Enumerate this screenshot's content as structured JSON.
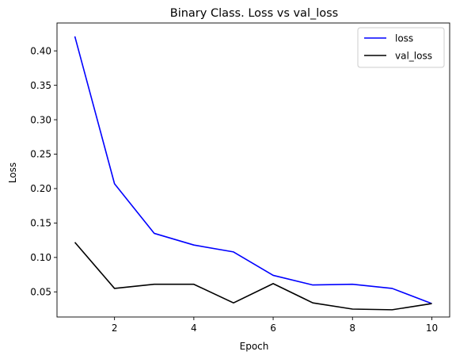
{
  "chart_data": {
    "type": "line",
    "title": "Binary Class. Loss vs val_loss",
    "xlabel": "Epoch",
    "ylabel": "Loss",
    "x": [
      1,
      2,
      3,
      4,
      5,
      6,
      7,
      8,
      9,
      10
    ],
    "series": [
      {
        "name": "loss",
        "color": "#0000ff",
        "values": [
          0.421,
          0.207,
          0.135,
          0.118,
          0.108,
          0.074,
          0.06,
          0.061,
          0.055,
          0.033
        ]
      },
      {
        "name": "val_loss",
        "color": "#000000",
        "values": [
          0.122,
          0.055,
          0.061,
          0.061,
          0.034,
          0.062,
          0.034,
          0.025,
          0.024,
          0.033
        ]
      }
    ],
    "xlim": [
      0.55,
      10.45
    ],
    "ylim": [
      0.0135,
      0.4405
    ],
    "xticks": [
      2,
      4,
      6,
      8,
      10
    ],
    "xtick_labels": [
      "2",
      "4",
      "6",
      "8",
      "10"
    ],
    "yticks": [
      0.05,
      0.1,
      0.15,
      0.2,
      0.25,
      0.3,
      0.35,
      0.4
    ],
    "ytick_labels": [
      "0.05",
      "0.10",
      "0.15",
      "0.20",
      "0.25",
      "0.30",
      "0.35",
      "0.40"
    ],
    "grid": false,
    "legend_position": "top-right"
  }
}
